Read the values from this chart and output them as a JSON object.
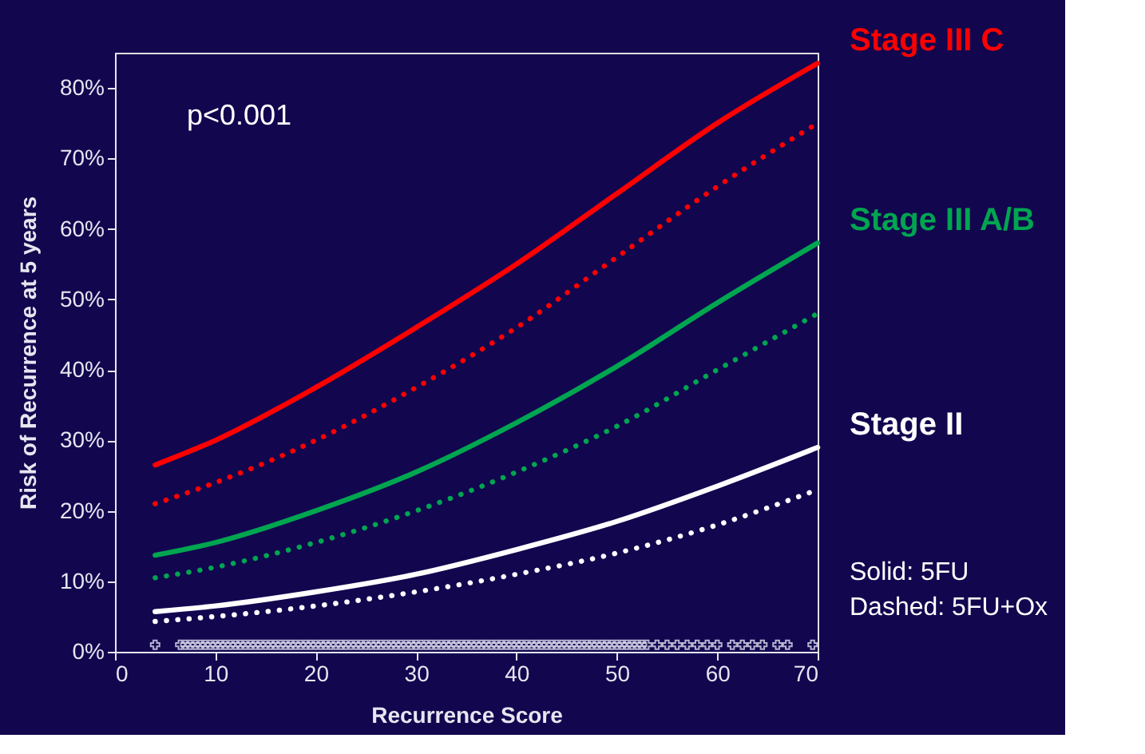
{
  "chart_data": {
    "type": "line",
    "xlabel": "Recurrence Score",
    "ylabel": "Risk of Recurrence at 5 years",
    "x": [
      4,
      10,
      20,
      30,
      40,
      50,
      60,
      70
    ],
    "series": [
      {
        "name": "Stage III C",
        "color": "#ff0000",
        "line_style": "solid",
        "values": [
          26.5,
          30,
          37.5,
          46,
          55,
          65,
          75,
          83.5
        ]
      },
      {
        "color": "#ff0000",
        "line_style": "dotted",
        "values": [
          21,
          24,
          30,
          37.5,
          46,
          56,
          66,
          75
        ]
      },
      {
        "name": "Stage III A/B",
        "color": "#00a550",
        "line_style": "solid",
        "values": [
          13.7,
          15.5,
          20,
          25.5,
          32.5,
          40.5,
          49.5,
          58
        ]
      },
      {
        "color": "#00a550",
        "line_style": "dotted",
        "values": [
          10.5,
          12,
          15.5,
          20,
          25.5,
          32,
          40,
          48
        ]
      },
      {
        "name": "Stage II",
        "color": "#ffffff",
        "line_style": "solid",
        "values": [
          5.7,
          6.5,
          8.5,
          11,
          14.5,
          18.5,
          23.5,
          29
        ]
      },
      {
        "color": "#ffffff",
        "line_style": "dotted",
        "values": [
          4.3,
          5,
          6.5,
          8.5,
          11,
          14,
          18,
          23
        ]
      },
      {
        "type": "scatter",
        "marker": "cross",
        "color": "#dcdcf0",
        "x": [
          4,
          6.5,
          7,
          7.5,
          8,
          8.5,
          9,
          9.5,
          10,
          10.5,
          11,
          11.5,
          12,
          12.5,
          13,
          13.5,
          14,
          14.5,
          15,
          15.5,
          16,
          16.5,
          17,
          17.5,
          18,
          18.5,
          19,
          19.5,
          20,
          20.5,
          21,
          21.5,
          22,
          22.5,
          23,
          23.5,
          24,
          24.5,
          25,
          25.5,
          26,
          26.5,
          27,
          27.5,
          28,
          28.5,
          29,
          29.5,
          30,
          30.5,
          31,
          31.5,
          32,
          32.5,
          33,
          33.5,
          34,
          34.5,
          35,
          35.5,
          36,
          36.5,
          37,
          37.5,
          38,
          38.5,
          39,
          39.5,
          40,
          40.5,
          41,
          41.5,
          42,
          42.5,
          43,
          43.5,
          44,
          44.5,
          45,
          45.5,
          46,
          46.5,
          47,
          47.5,
          48,
          48.5,
          49,
          49.5,
          50,
          50.5,
          51,
          51.5,
          52,
          52.5,
          53,
          54,
          55,
          56,
          57,
          58,
          59,
          60,
          61.5,
          62.5,
          63.5,
          64.5,
          66,
          67,
          69.5
        ],
        "values": [
          1,
          1,
          1,
          1,
          1,
          1,
          1,
          1,
          1,
          1,
          1,
          1,
          1,
          1,
          1,
          1,
          1,
          1,
          1,
          1,
          1,
          1,
          1,
          1,
          1,
          1,
          1,
          1,
          1,
          1,
          1,
          1,
          1,
          1,
          1,
          1,
          1,
          1,
          1,
          1,
          1,
          1,
          1,
          1,
          1,
          1,
          1,
          1,
          1,
          1,
          1,
          1,
          1,
          1,
          1,
          1,
          1,
          1,
          1,
          1,
          1,
          1,
          1,
          1,
          1,
          1,
          1,
          1,
          1,
          1,
          1,
          1,
          1,
          1,
          1,
          1,
          1,
          1,
          1,
          1,
          1,
          1,
          1,
          1,
          1,
          1,
          1,
          1,
          1,
          1,
          1,
          1,
          1,
          1,
          1,
          1,
          1,
          1,
          1,
          1,
          1,
          1,
          1,
          1,
          1,
          1,
          1,
          1,
          1
        ]
      }
    ],
    "xlim": [
      0,
      70
    ],
    "xticks": [
      0,
      10,
      20,
      30,
      40,
      50,
      60,
      70
    ],
    "ylim": [
      0,
      85
    ],
    "yticks": [
      {
        "value": 0,
        "label": "0%"
      },
      {
        "value": 10,
        "label": "10%"
      },
      {
        "value": 20,
        "label": "20%"
      },
      {
        "value": 30,
        "label": "30%"
      },
      {
        "value": 40,
        "label": "40%"
      },
      {
        "value": 50,
        "label": "50%"
      },
      {
        "value": 60,
        "label": "60%"
      },
      {
        "value": 70,
        "label": "70%"
      },
      {
        "value": 80,
        "label": "80%"
      }
    ],
    "annotations": [
      "p<0.001",
      "Solid: 5FU",
      "Dashed: 5FU+Ox"
    ],
    "grid": false
  }
}
